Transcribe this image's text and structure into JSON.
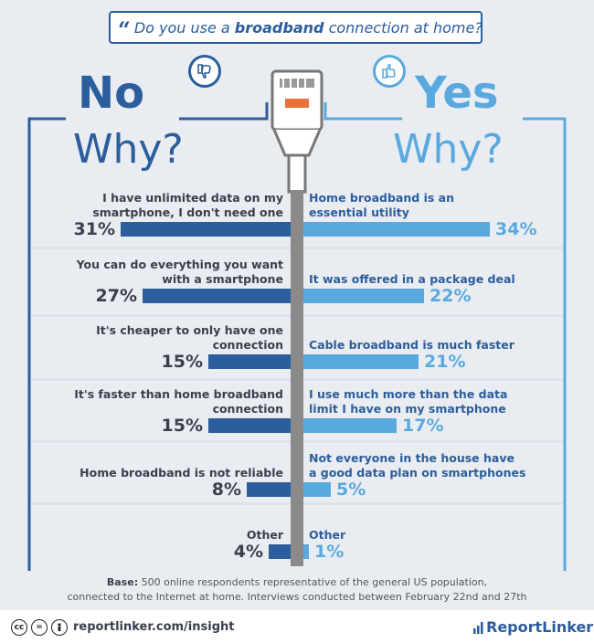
{
  "title": {
    "quote": "“",
    "prefix": "Do you use a ",
    "bold": "broadband",
    "suffix": " connection at home?"
  },
  "no": {
    "heading": "No",
    "why": "Why?"
  },
  "yes": {
    "heading": "Yes",
    "why": "Why?"
  },
  "chart_data": {
    "type": "bar",
    "title": "Do you use a broadband connection at home?",
    "series": [
      {
        "name": "No",
        "categories": [
          "I have unlimited data on my smartphone, I don't need one",
          "You can do everything you want with a smartphone",
          "It's cheaper to only have one connection",
          "It's faster than home broadband connection",
          "Home broadband is not reliable",
          "Other"
        ],
        "values": [
          31,
          27,
          15,
          15,
          8,
          4
        ],
        "labels": [
          "31%",
          "27%",
          "15%",
          "15%",
          "8%",
          "4%"
        ]
      },
      {
        "name": "Yes",
        "categories": [
          "Home broadband is an essential utility",
          "It was offered in a package deal",
          "Cable broadband is much faster",
          "I use much more than the data limit I have on my smartphone",
          "Not everyone in the house have a good data plan on smartphones",
          "Other"
        ],
        "values": [
          34,
          22,
          21,
          17,
          5,
          1
        ],
        "labels": [
          "34%",
          "22%",
          "21%",
          "17%",
          "5%",
          "1%"
        ]
      }
    ],
    "colors": {
      "no": "#2c5d9c",
      "yes": "#5aa9de"
    }
  },
  "rows": [
    {
      "left": [
        "I have unlimited data on my",
        "smartphone, I don't need one"
      ],
      "right": [
        "Home broadband is an",
        "essential utility"
      ]
    },
    {
      "left": [
        "You can do everything you want",
        "with a smartphone"
      ],
      "right": [
        "It was offered in a package deal"
      ]
    },
    {
      "left": [
        "It's cheaper to only have one",
        "connection"
      ],
      "right": [
        "Cable broadband is much faster"
      ]
    },
    {
      "left": [
        "It's faster than home broadband",
        "connection"
      ],
      "right": [
        "I use much more than the data",
        "limit I have on my smartphone"
      ]
    },
    {
      "left": [
        "Home broadband is not reliable"
      ],
      "right": [
        "Not everyone in the house have",
        "a good data plan on smartphones"
      ]
    },
    {
      "left": [
        "Other"
      ],
      "right": [
        "Other"
      ]
    }
  ],
  "base": {
    "label": "Base:",
    "line1": " 500 online respondents representative of the general US population,",
    "line2": "connected to the Internet at home. Interviews conducted between February 22nd and 27th"
  },
  "footer": {
    "url": "reportlinker.com/insight",
    "brand": "ReportLinker",
    "cc1": "cc",
    "cc2": "="
  },
  "icons": {
    "no": "thumbs-down-icon",
    "yes": "thumbs-up-icon",
    "center": "ethernet-cable-icon"
  }
}
